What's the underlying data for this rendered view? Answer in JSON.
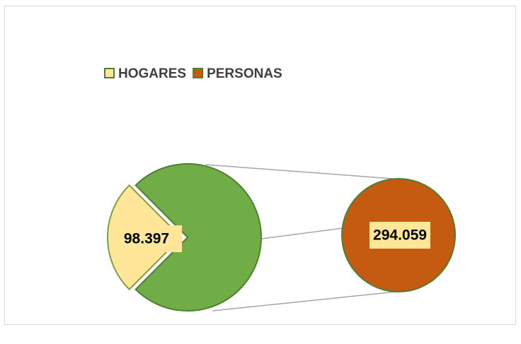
{
  "chart_data": {
    "type": "pie",
    "categories": [
      "HOGARES",
      "PERSONAS"
    ],
    "values": [
      98397,
      294059
    ],
    "value_labels": [
      "98.397",
      "294.059"
    ],
    "colors": [
      "#ffe699",
      "#c55a11"
    ],
    "split_color": "#70ad47",
    "legend": "top"
  }
}
